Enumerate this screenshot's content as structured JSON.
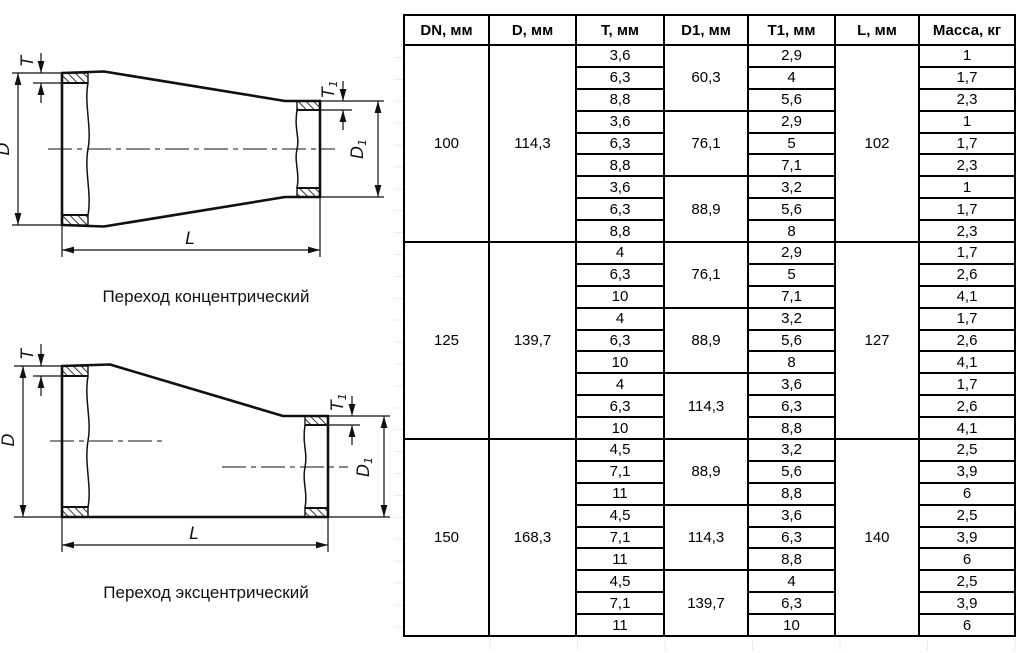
{
  "colors": {
    "line": "#111111",
    "table_border": "#000000",
    "background": "#ffffff"
  },
  "drawings": {
    "dim_labels": {
      "t_base": "T",
      "d_base": "D",
      "t1_base": "T",
      "t1_sub": "1",
      "d1_base": "D",
      "d1_sub": "1",
      "l": "L"
    },
    "concentric": {
      "caption": "Переход концентрический"
    },
    "eccentric": {
      "caption": "Переход эксцентрический"
    }
  },
  "table": {
    "headers": [
      "DN, мм",
      "D, мм",
      "T, мм",
      "D1, мм",
      "T1, мм",
      "L, мм",
      "Масса, кг"
    ],
    "groups": [
      {
        "dn": "100",
        "d": "114,3",
        "l": "102",
        "subgroups": [
          {
            "d1": "60,3",
            "rows": [
              {
                "t": "3,6",
                "t1": "2,9",
                "mass": "1"
              },
              {
                "t": "6,3",
                "t1": "4",
                "mass": "1,7"
              },
              {
                "t": "8,8",
                "t1": "5,6",
                "mass": "2,3"
              }
            ]
          },
          {
            "d1": "76,1",
            "rows": [
              {
                "t": "3,6",
                "t1": "2,9",
                "mass": "1"
              },
              {
                "t": "6,3",
                "t1": "5",
                "mass": "1,7"
              },
              {
                "t": "8,8",
                "t1": "7,1",
                "mass": "2,3"
              }
            ]
          },
          {
            "d1": "88,9",
            "rows": [
              {
                "t": "3,6",
                "t1": "3,2",
                "mass": "1"
              },
              {
                "t": "6,3",
                "t1": "5,6",
                "mass": "1,7"
              },
              {
                "t": "8,8",
                "t1": "8",
                "mass": "2,3"
              }
            ]
          }
        ]
      },
      {
        "dn": "125",
        "d": "139,7",
        "l": "127",
        "subgroups": [
          {
            "d1": "76,1",
            "rows": [
              {
                "t": "4",
                "t1": "2,9",
                "mass": "1,7"
              },
              {
                "t": "6,3",
                "t1": "5",
                "mass": "2,6"
              },
              {
                "t": "10",
                "t1": "7,1",
                "mass": "4,1"
              }
            ]
          },
          {
            "d1": "88,9",
            "rows": [
              {
                "t": "4",
                "t1": "3,2",
                "mass": "1,7"
              },
              {
                "t": "6,3",
                "t1": "5,6",
                "mass": "2,6"
              },
              {
                "t": "10",
                "t1": "8",
                "mass": "4,1"
              }
            ]
          },
          {
            "d1": "114,3",
            "rows": [
              {
                "t": "4",
                "t1": "3,6",
                "mass": "1,7"
              },
              {
                "t": "6,3",
                "t1": "6,3",
                "mass": "2,6"
              },
              {
                "t": "10",
                "t1": "8,8",
                "mass": "4,1"
              }
            ]
          }
        ]
      },
      {
        "dn": "150",
        "d": "168,3",
        "l": "140",
        "subgroups": [
          {
            "d1": "88,9",
            "rows": [
              {
                "t": "4,5",
                "t1": "3,2",
                "mass": "2,5"
              },
              {
                "t": "7,1",
                "t1": "5,6",
                "mass": "3,9"
              },
              {
                "t": "11",
                "t1": "8,8",
                "mass": "6"
              }
            ]
          },
          {
            "d1": "114,3",
            "rows": [
              {
                "t": "4,5",
                "t1": "3,6",
                "mass": "2,5"
              },
              {
                "t": "7,1",
                "t1": "6,3",
                "mass": "3,9"
              },
              {
                "t": "11",
                "t1": "8,8",
                "mass": "6"
              }
            ]
          },
          {
            "d1": "139,7",
            "rows": [
              {
                "t": "4,5",
                "t1": "4",
                "mass": "2,5"
              },
              {
                "t": "7,1",
                "t1": "6,3",
                "mass": "3,9"
              },
              {
                "t": "11",
                "t1": "10",
                "mass": "6"
              }
            ]
          }
        ]
      }
    ]
  }
}
